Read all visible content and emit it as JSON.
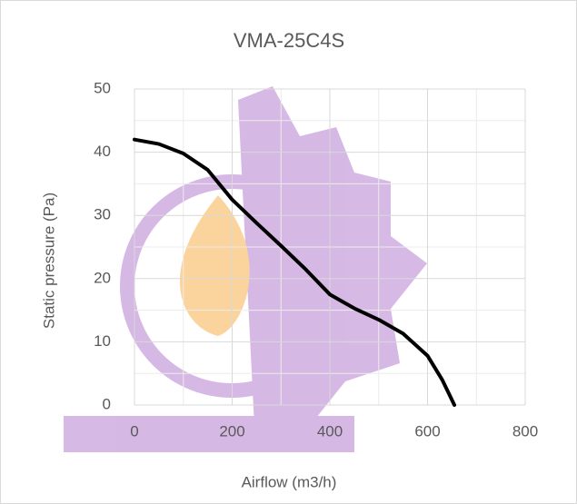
{
  "chart_data": {
    "type": "line",
    "title": "VMA-25C4S",
    "x_label": "Airflow (m3/h)",
    "y_label": "Static pressure (Pa)",
    "x": [
      0,
      50,
      100,
      150,
      200,
      250,
      300,
      350,
      400,
      450,
      500,
      550,
      600,
      630,
      655
    ],
    "series": [
      {
        "color": "#000000",
        "values": [
          42,
          41.3,
          39.8,
          37.2,
          32.5,
          28.8,
          25.2,
          21.5,
          17.5,
          15.3,
          13.5,
          11.3,
          7.8,
          4,
          0
        ]
      }
    ],
    "xlim": [
      0,
      800
    ],
    "xticks": [
      0,
      200,
      400,
      600,
      800
    ],
    "ylim": [
      0,
      50
    ],
    "yticks": [
      0,
      10,
      20,
      30,
      40,
      50
    ],
    "grid": true
  }
}
